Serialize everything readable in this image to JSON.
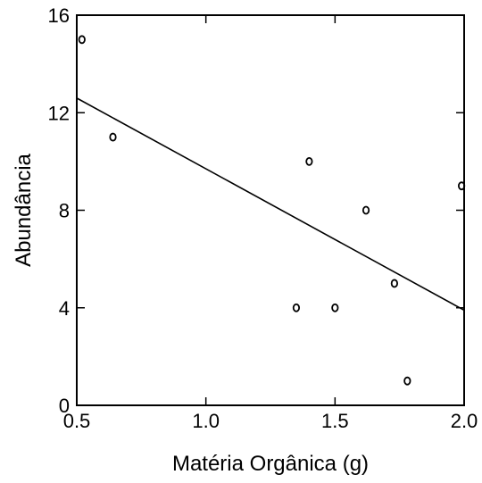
{
  "chart_data": {
    "type": "scatter",
    "title": "",
    "xlabel": "Matéria Orgânica (g)",
    "ylabel": "Abundância",
    "xlim": [
      0.5,
      2.0
    ],
    "ylim": [
      0,
      16
    ],
    "x_ticks": [
      "0.5",
      "1.0",
      "1.5",
      "2.0"
    ],
    "y_ticks": [
      "0",
      "4",
      "8",
      "12",
      "16"
    ],
    "grid": false,
    "points": [
      {
        "x": 0.52,
        "y": 15
      },
      {
        "x": 0.64,
        "y": 11
      },
      {
        "x": 1.35,
        "y": 4
      },
      {
        "x": 1.4,
        "y": 10
      },
      {
        "x": 1.5,
        "y": 4
      },
      {
        "x": 1.62,
        "y": 8
      },
      {
        "x": 1.73,
        "y": 5
      },
      {
        "x": 1.78,
        "y": 1
      },
      {
        "x": 1.99,
        "y": 9
      }
    ],
    "trendline": {
      "x": [
        0.5,
        2.0
      ],
      "y": [
        12.6,
        3.9
      ]
    },
    "colors": {
      "marks": "#000000",
      "background": "#ffffff"
    }
  }
}
